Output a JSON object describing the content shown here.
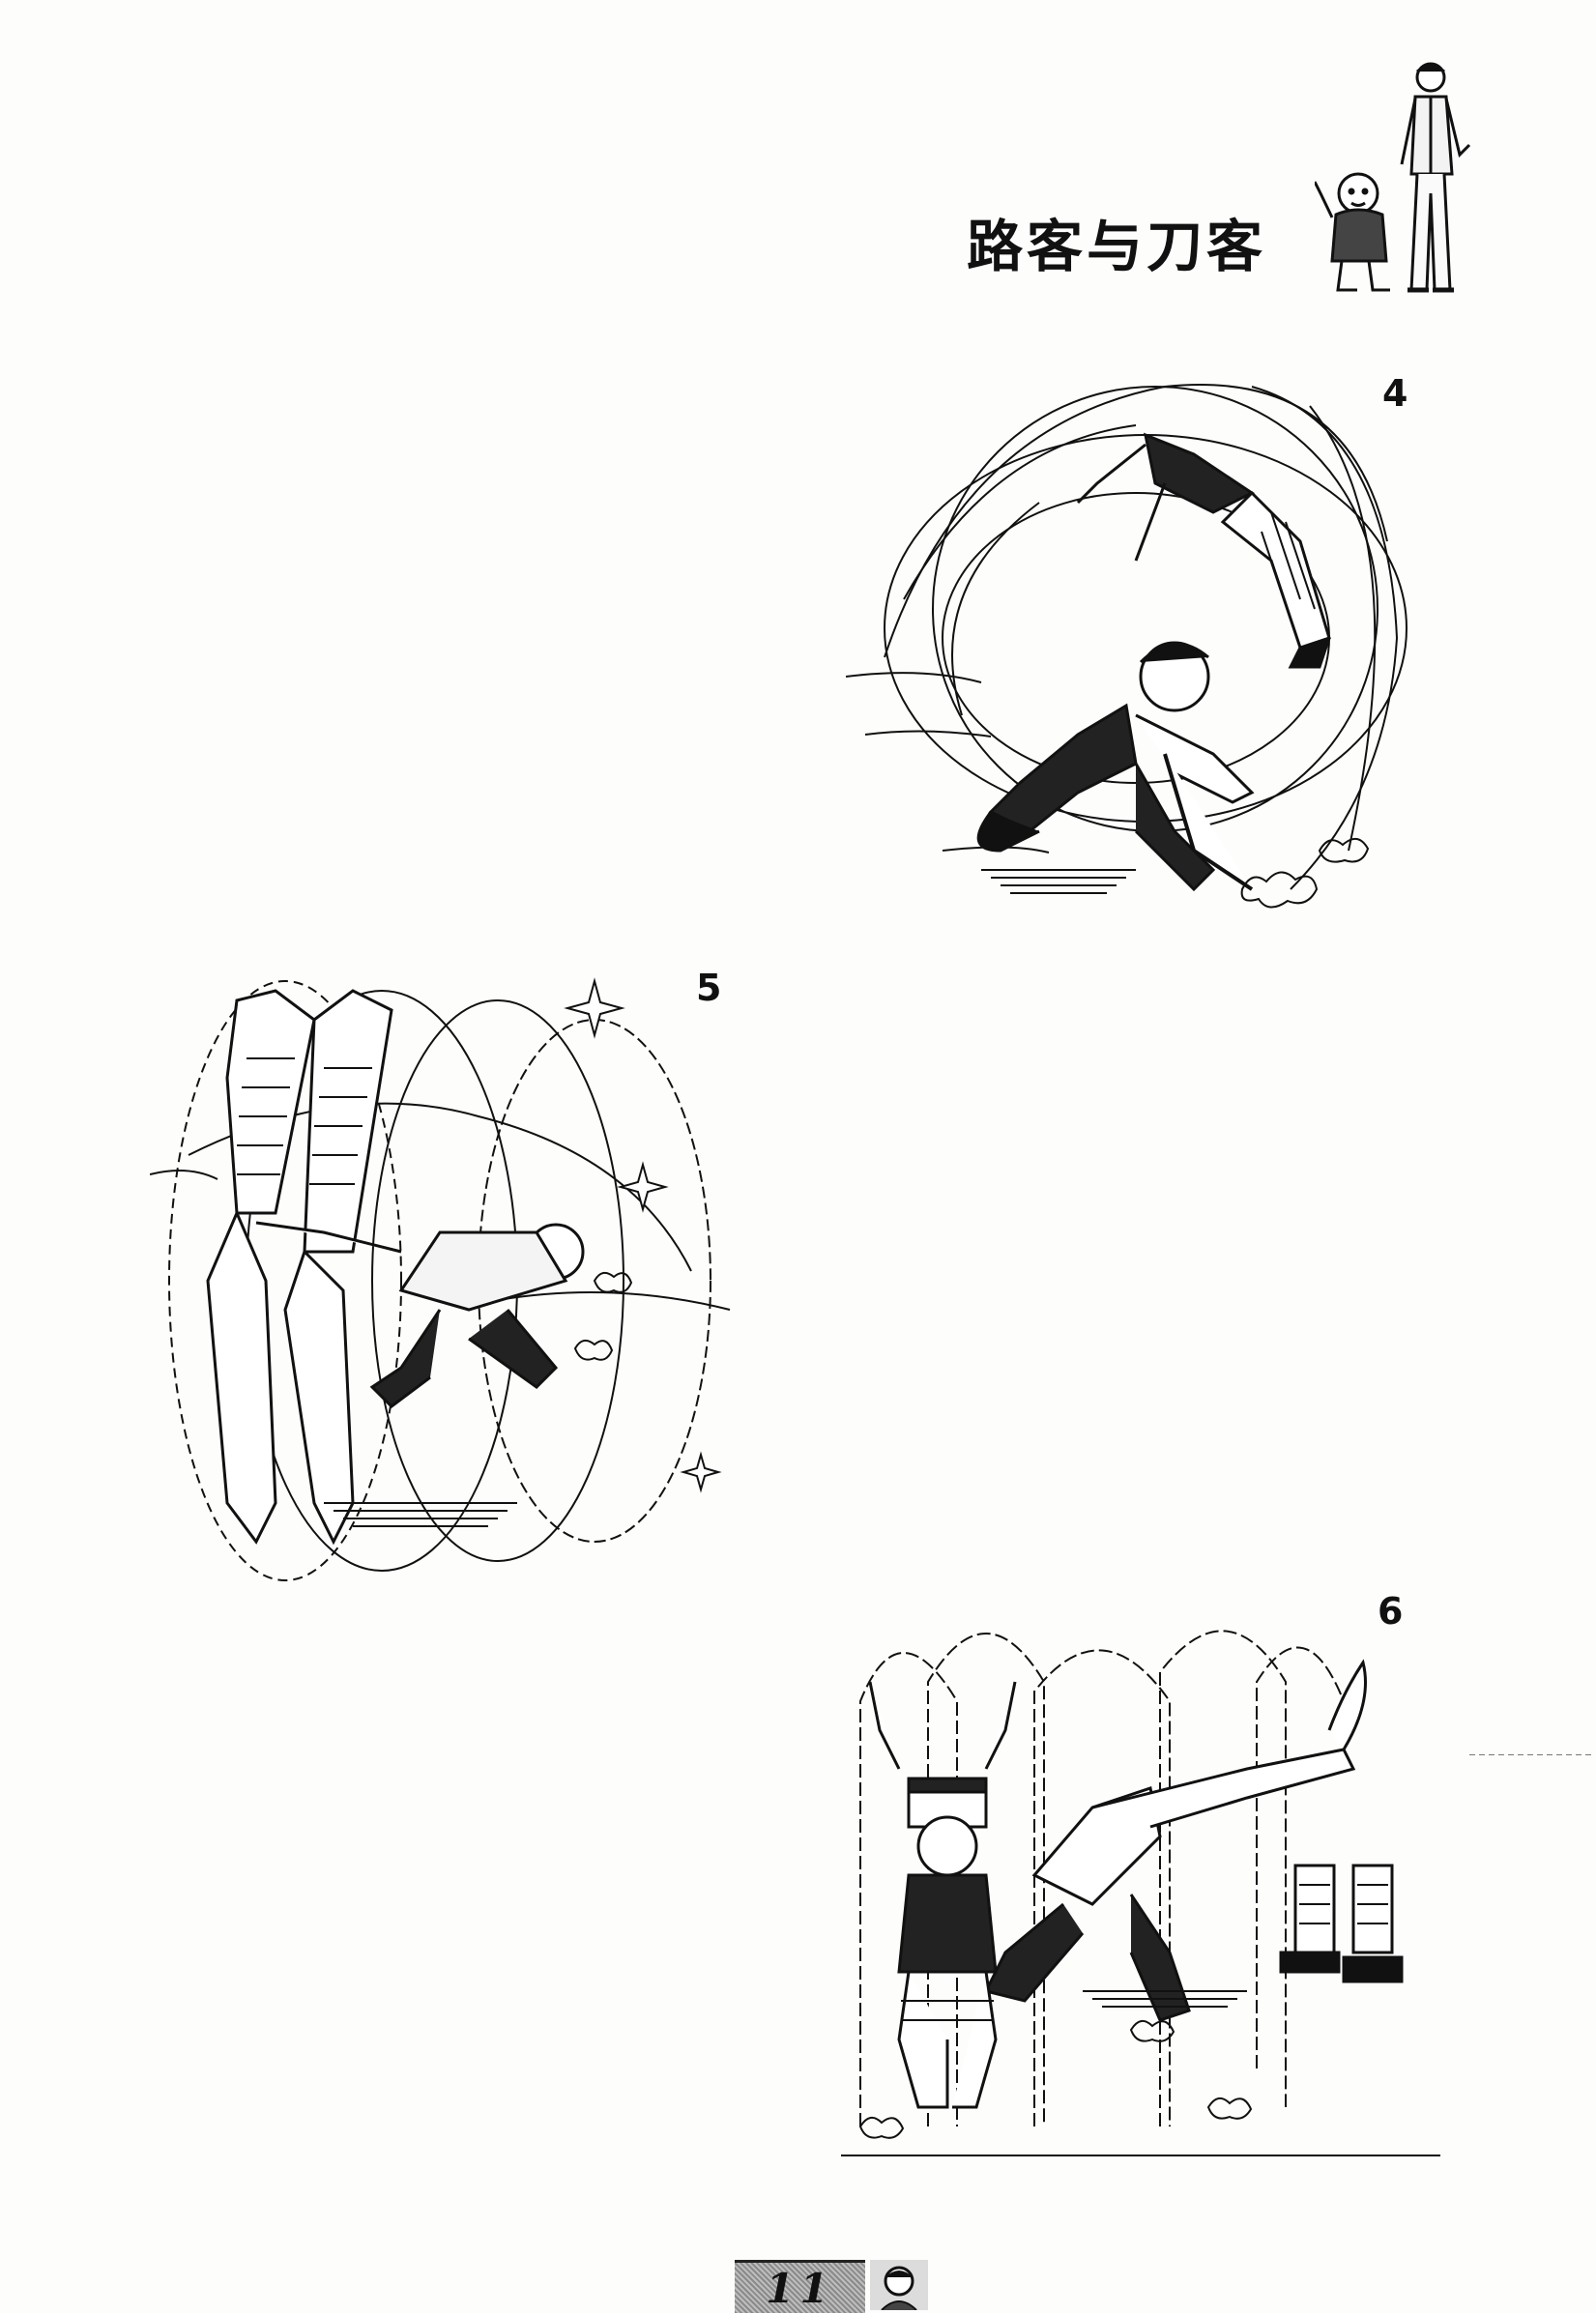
{
  "header": {
    "title": "路客与刀客",
    "figures_icon": "two-characters-illustration"
  },
  "panels": [
    {
      "number": "4",
      "illustration": "sword-fighter-slashing-leaping-opponent"
    },
    {
      "number": "5",
      "illustration": "opponent-flipped-upside-down-in-whirlwind"
    },
    {
      "number": "6",
      "illustration": "victim-in-underwear-hands-up-boots-left-behind"
    }
  ],
  "footer": {
    "page_number": "11",
    "icon": "character-face-icon"
  },
  "colors": {
    "ink": "#111111",
    "paper": "#fdfdfc",
    "tab_gray": "#a8a8a8"
  }
}
